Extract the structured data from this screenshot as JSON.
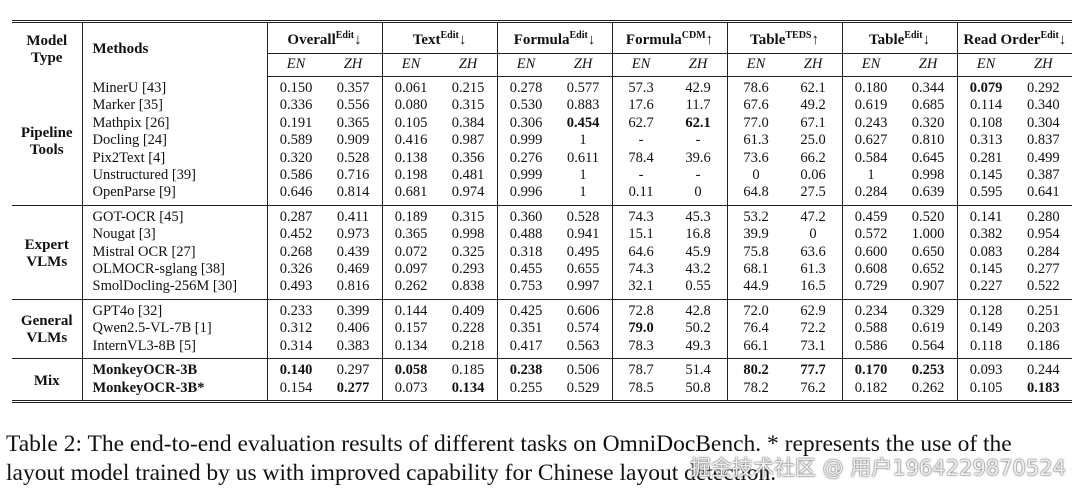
{
  "table": {
    "header": {
      "model_type": "Model Type",
      "methods": "Methods",
      "metrics": [
        {
          "name": "Overall",
          "sup": "Edit",
          "arrow": "↓"
        },
        {
          "name": "Text",
          "sup": "Edit",
          "arrow": "↓"
        },
        {
          "name": "Formula",
          "sup": "Edit",
          "arrow": "↓"
        },
        {
          "name": "Formula",
          "sup": "CDM",
          "arrow": "↑"
        },
        {
          "name": "Table",
          "sup": "TEDS",
          "arrow": "↑"
        },
        {
          "name": "Table",
          "sup": "Edit",
          "arrow": "↓"
        },
        {
          "name": "Read Order",
          "sup": "Edit",
          "arrow": "↓"
        }
      ],
      "languages": [
        "EN",
        "ZH"
      ]
    },
    "groups": [
      {
        "model_type": "Pipeline Tools",
        "rows": [
          {
            "method": "MinerU [43]",
            "values": [
              "0.150",
              "0.357",
              "0.061",
              "0.215",
              "0.278",
              "0.577",
              "57.3",
              "42.9",
              "78.6",
              "62.1",
              "0.180",
              "0.344",
              "0.079",
              "0.292"
            ],
            "bold": [
              12
            ]
          },
          {
            "method": "Marker [35]",
            "values": [
              "0.336",
              "0.556",
              "0.080",
              "0.315",
              "0.530",
              "0.883",
              "17.6",
              "11.7",
              "67.6",
              "49.2",
              "0.619",
              "0.685",
              "0.114",
              "0.340"
            ],
            "bold": []
          },
          {
            "method": "Mathpix [26]",
            "values": [
              "0.191",
              "0.365",
              "0.105",
              "0.384",
              "0.306",
              "0.454",
              "62.7",
              "62.1",
              "77.0",
              "67.1",
              "0.243",
              "0.320",
              "0.108",
              "0.304"
            ],
            "bold": [
              5,
              7
            ]
          },
          {
            "method": "Docling [24]",
            "values": [
              "0.589",
              "0.909",
              "0.416",
              "0.987",
              "0.999",
              "1",
              "-",
              "-",
              "61.3",
              "25.0",
              "0.627",
              "0.810",
              "0.313",
              "0.837"
            ],
            "bold": []
          },
          {
            "method": "Pix2Text [4]",
            "values": [
              "0.320",
              "0.528",
              "0.138",
              "0.356",
              "0.276",
              "0.611",
              "78.4",
              "39.6",
              "73.6",
              "66.2",
              "0.584",
              "0.645",
              "0.281",
              "0.499"
            ],
            "bold": []
          },
          {
            "method": "Unstructured [39]",
            "values": [
              "0.586",
              "0.716",
              "0.198",
              "0.481",
              "0.999",
              "1",
              "-",
              "-",
              "0",
              "0.06",
              "1",
              "0.998",
              "0.145",
              "0.387"
            ],
            "bold": []
          },
          {
            "method": "OpenParse [9]",
            "values": [
              "0.646",
              "0.814",
              "0.681",
              "0.974",
              "0.996",
              "1",
              "0.11",
              "0",
              "64.8",
              "27.5",
              "0.284",
              "0.639",
              "0.595",
              "0.641"
            ],
            "bold": []
          }
        ]
      },
      {
        "model_type": "Expert VLMs",
        "rows": [
          {
            "method": "GOT-OCR [45]",
            "values": [
              "0.287",
              "0.411",
              "0.189",
              "0.315",
              "0.360",
              "0.528",
              "74.3",
              "45.3",
              "53.2",
              "47.2",
              "0.459",
              "0.520",
              "0.141",
              "0.280"
            ],
            "bold": []
          },
          {
            "method": "Nougat [3]",
            "values": [
              "0.452",
              "0.973",
              "0.365",
              "0.998",
              "0.488",
              "0.941",
              "15.1",
              "16.8",
              "39.9",
              "0",
              "0.572",
              "1.000",
              "0.382",
              "0.954"
            ],
            "bold": []
          },
          {
            "method": "Mistral OCR [27]",
            "values": [
              "0.268",
              "0.439",
              "0.072",
              "0.325",
              "0.318",
              "0.495",
              "64.6",
              "45.9",
              "75.8",
              "63.6",
              "0.600",
              "0.650",
              "0.083",
              "0.284"
            ],
            "bold": []
          },
          {
            "method": "OLMOCR-sglang [38]",
            "values": [
              "0.326",
              "0.469",
              "0.097",
              "0.293",
              "0.455",
              "0.655",
              "74.3",
              "43.2",
              "68.1",
              "61.3",
              "0.608",
              "0.652",
              "0.145",
              "0.277"
            ],
            "bold": []
          },
          {
            "method": "SmolDocling-256M [30]",
            "values": [
              "0.493",
              "0.816",
              "0.262",
              "0.838",
              "0.753",
              "0.997",
              "32.1",
              "0.55",
              "44.9",
              "16.5",
              "0.729",
              "0.907",
              "0.227",
              "0.522"
            ],
            "bold": []
          }
        ]
      },
      {
        "model_type": "General VLMs",
        "rows": [
          {
            "method": "GPT4o [32]",
            "values": [
              "0.233",
              "0.399",
              "0.144",
              "0.409",
              "0.425",
              "0.606",
              "72.8",
              "42.8",
              "72.0",
              "62.9",
              "0.234",
              "0.329",
              "0.128",
              "0.251"
            ],
            "bold": []
          },
          {
            "method": "Qwen2.5-VL-7B [1]",
            "values": [
              "0.312",
              "0.406",
              "0.157",
              "0.228",
              "0.351",
              "0.574",
              "79.0",
              "50.2",
              "76.4",
              "72.2",
              "0.588",
              "0.619",
              "0.149",
              "0.203"
            ],
            "bold": [
              6
            ]
          },
          {
            "method": "InternVL3-8B [5]",
            "values": [
              "0.314",
              "0.383",
              "0.134",
              "0.218",
              "0.417",
              "0.563",
              "78.3",
              "49.3",
              "66.1",
              "73.1",
              "0.586",
              "0.564",
              "0.118",
              "0.186"
            ],
            "bold": []
          }
        ]
      },
      {
        "model_type": "Mix",
        "rows": [
          {
            "method": "MonkeyOCR-3B",
            "bold_method": true,
            "values": [
              "0.140",
              "0.297",
              "0.058",
              "0.185",
              "0.238",
              "0.506",
              "78.7",
              "51.4",
              "80.2",
              "77.7",
              "0.170",
              "0.253",
              "0.093",
              "0.244"
            ],
            "bold": [
              0,
              2,
              4,
              8,
              9,
              10,
              11
            ]
          },
          {
            "method": "MonkeyOCR-3B*",
            "bold_method": true,
            "values": [
              "0.154",
              "0.277",
              "0.073",
              "0.134",
              "0.255",
              "0.529",
              "78.5",
              "50.8",
              "78.2",
              "76.2",
              "0.182",
              "0.262",
              "0.105",
              "0.183"
            ],
            "bold": [
              1,
              3,
              13
            ]
          }
        ]
      }
    ]
  },
  "caption": "Table 2: The end-to-end evaluation results of different tasks on OmniDocBench. * represents the use of the layout model trained by us with improved capability for Chinese layout detection.",
  "watermark": "掘金技术社区 @ 用户1964229870524"
}
